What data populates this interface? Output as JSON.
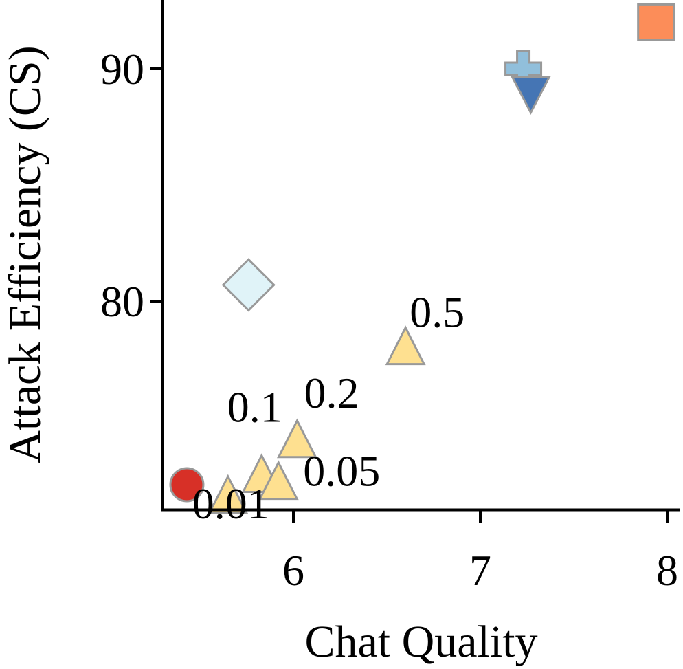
{
  "chart_data": {
    "type": "scatter",
    "xlabel": "Chat Quality",
    "ylabel": "Attack Efficiency (CS)",
    "xlim": [
      5.3,
      8.05
    ],
    "ylim": [
      71.1,
      93
    ],
    "xticks": [
      6,
      7,
      8
    ],
    "yticks": [
      80,
      90
    ],
    "grid": false,
    "points": [
      {
        "x": 5.43,
        "y": 72.1,
        "marker": "circle",
        "color": "#d73027",
        "label": ""
      },
      {
        "x": 5.65,
        "y": 71.6,
        "marker": "triangle-up",
        "color": "#fee090",
        "label": "0.01"
      },
      {
        "x": 5.83,
        "y": 72.5,
        "marker": "triangle-up",
        "color": "#fee090",
        "label": "0.1"
      },
      {
        "x": 5.92,
        "y": 72.2,
        "marker": "triangle-up",
        "color": "#fee090",
        "label": "0.05"
      },
      {
        "x": 6.02,
        "y": 74.0,
        "marker": "triangle-up",
        "color": "#fee090",
        "label": "0.2"
      },
      {
        "x": 6.6,
        "y": 78.0,
        "marker": "triangle-up",
        "color": "#fee090",
        "label": "0.5"
      },
      {
        "x": 5.76,
        "y": 80.7,
        "marker": "diamond",
        "color": "#e0f3f8",
        "label": ""
      },
      {
        "x": 7.23,
        "y": 90.0,
        "marker": "plus",
        "color": "#91bfdb",
        "label": ""
      },
      {
        "x": 7.27,
        "y": 89.0,
        "marker": "triangle-down",
        "color": "#4575b4",
        "label": ""
      },
      {
        "x": 7.94,
        "y": 92.0,
        "marker": "square",
        "color": "#fc8d59",
        "label": ""
      }
    ],
    "marker_edge_color": "#999999"
  }
}
